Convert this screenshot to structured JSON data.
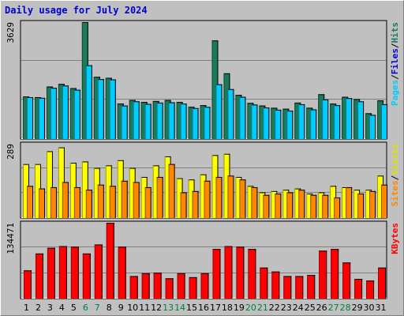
{
  "title": "Daily usage for July 2024",
  "labels": {
    "pages": "Pages",
    "files": "Files",
    "hits": "Hits",
    "sites": "Sites",
    "visits": "Visits",
    "kbytes": "KBytes",
    "sep": "/"
  },
  "colors": {
    "hits": "#1a7a5a",
    "files": "#00ccff",
    "pages": "#00ccff",
    "visits": "#ffff00",
    "sites": "#ff8800",
    "kbytes": "#ff0000",
    "title": "#0000cc",
    "weekend": "#008040",
    "weekday": "#000000"
  },
  "chart_data": [
    {
      "type": "bar",
      "name": "hits-files-pages",
      "ymax_label": "3629",
      "ylim": [
        0,
        3629
      ],
      "categories": [
        "1",
        "2",
        "3",
        "4",
        "5",
        "6",
        "7",
        "8",
        "9",
        "10",
        "11",
        "12",
        "13",
        "14",
        "15",
        "16",
        "17",
        "18",
        "19",
        "20",
        "21",
        "22",
        "23",
        "24",
        "25",
        "26",
        "27",
        "28",
        "29",
        "30",
        "31"
      ],
      "series": [
        {
          "name": "Hits",
          "values": [
            1320,
            1300,
            1630,
            1710,
            1580,
            3629,
            1930,
            1900,
            1100,
            1210,
            1150,
            1180,
            1210,
            1150,
            1000,
            1050,
            3060,
            2040,
            1370,
            1120,
            1040,
            970,
            940,
            1130,
            970,
            1390,
            1100,
            1310,
            1240,
            800,
            1200
          ]
        },
        {
          "name": "Files",
          "values": [
            1300,
            1280,
            1590,
            1660,
            1530,
            2290,
            1860,
            1850,
            1040,
            1170,
            1090,
            1130,
            1140,
            1100,
            960,
            1000,
            1700,
            1550,
            1310,
            1070,
            980,
            910,
            880,
            1080,
            920,
            1230,
            1050,
            1270,
            1170,
            750,
            1080
          ]
        }
      ]
    },
    {
      "type": "bar",
      "name": "visits-sites",
      "ymax_label": "289",
      "ylim": [
        0,
        289
      ],
      "categories": [
        "1",
        "2",
        "3",
        "4",
        "5",
        "6",
        "7",
        "8",
        "9",
        "10",
        "11",
        "12",
        "13",
        "14",
        "15",
        "16",
        "17",
        "18",
        "19",
        "20",
        "21",
        "22",
        "23",
        "24",
        "25",
        "26",
        "27",
        "28",
        "29",
        "30",
        "31"
      ],
      "series": [
        {
          "name": "Visits",
          "values": [
            210,
            210,
            260,
            275,
            215,
            220,
            195,
            205,
            225,
            195,
            160,
            205,
            240,
            155,
            150,
            170,
            245,
            250,
            160,
            125,
            100,
            105,
            110,
            115,
            95,
            100,
            125,
            120,
            110,
            110,
            165
          ]
        },
        {
          "name": "Sites",
          "values": [
            125,
            115,
            120,
            140,
            120,
            110,
            130,
            125,
            145,
            140,
            120,
            160,
            210,
            100,
            105,
            145,
            160,
            165,
            150,
            120,
            90,
            95,
            100,
            110,
            90,
            90,
            80,
            120,
            95,
            105,
            130
          ]
        }
      ]
    },
    {
      "type": "bar",
      "name": "kbytes",
      "ymax_label": "134471",
      "ylim": [
        0,
        134471
      ],
      "categories": [
        "1",
        "2",
        "3",
        "4",
        "5",
        "6",
        "7",
        "8",
        "9",
        "10",
        "11",
        "12",
        "13",
        "14",
        "15",
        "16",
        "17",
        "18",
        "19",
        "20",
        "21",
        "22",
        "23",
        "24",
        "25",
        "26",
        "27",
        "28",
        "29",
        "30",
        "31"
      ],
      "series": [
        {
          "name": "KBytes",
          "values": [
            50000,
            80000,
            90000,
            93000,
            92000,
            80000,
            96000,
            134471,
            92000,
            40000,
            45000,
            46000,
            36000,
            45000,
            38000,
            45000,
            88000,
            93000,
            92000,
            88000,
            55000,
            48000,
            40000,
            40000,
            42000,
            85000,
            88000,
            64000,
            35000,
            32000,
            55000
          ]
        }
      ]
    }
  ]
}
